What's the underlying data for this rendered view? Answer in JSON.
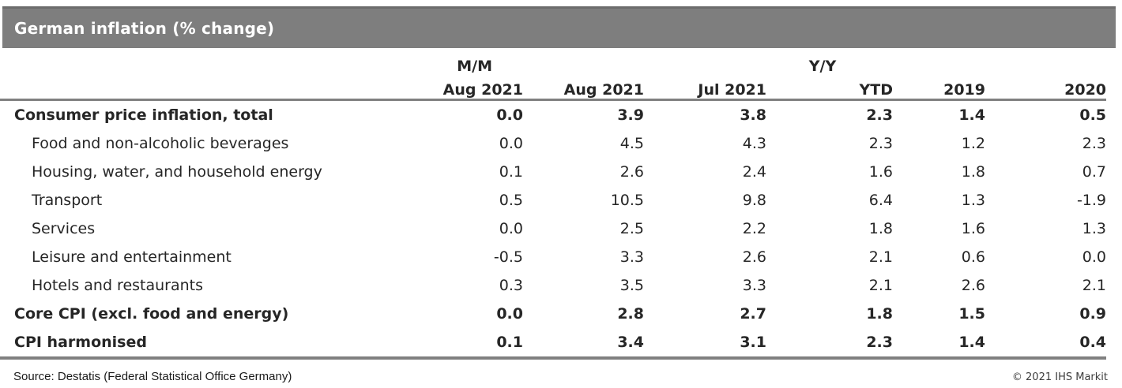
{
  "title": "German inflation (% change)",
  "header": {
    "mm_label": "M/M",
    "yy_label": "Y/Y"
  },
  "chart_data": {
    "type": "table",
    "title": "German inflation (% change)",
    "group_headers": [
      {
        "label": "M/M",
        "columns": [
          "Aug 2021"
        ]
      },
      {
        "label": "Y/Y",
        "columns": [
          "Aug 2021",
          "Jul 2021",
          "YTD",
          "2019",
          "2020"
        ]
      }
    ],
    "columns": [
      "Aug 2021",
      "Aug 2021",
      "Jul 2021",
      "YTD",
      "2019",
      "2020"
    ],
    "rows": [
      {
        "label": "Consumer price inflation, total",
        "bold": true,
        "indent": false,
        "values": [
          "0.0",
          "3.9",
          "3.8",
          "2.3",
          "1.4",
          "0.5"
        ]
      },
      {
        "label": "Food and non-alcoholic beverages",
        "bold": false,
        "indent": true,
        "values": [
          "0.0",
          "4.5",
          "4.3",
          "2.3",
          "1.2",
          "2.3"
        ]
      },
      {
        "label": "Housing, water, and household energy",
        "bold": false,
        "indent": true,
        "values": [
          "0.1",
          "2.6",
          "2.4",
          "1.6",
          "1.8",
          "0.7"
        ]
      },
      {
        "label": "Transport",
        "bold": false,
        "indent": true,
        "values": [
          "0.5",
          "10.5",
          "9.8",
          "6.4",
          "1.3",
          "-1.9"
        ]
      },
      {
        "label": "Services",
        "bold": false,
        "indent": true,
        "values": [
          "0.0",
          "2.5",
          "2.2",
          "1.8",
          "1.6",
          "1.3"
        ]
      },
      {
        "label": "Leisure and entertainment",
        "bold": false,
        "indent": true,
        "values": [
          "-0.5",
          "3.3",
          "2.6",
          "2.1",
          "0.6",
          "0.0"
        ]
      },
      {
        "label": "Hotels and restaurants",
        "bold": false,
        "indent": true,
        "values": [
          "0.3",
          "3.5",
          "3.3",
          "2.1",
          "2.6",
          "2.1"
        ]
      },
      {
        "label": "Core CPI (excl. food and energy)",
        "bold": true,
        "indent": false,
        "values": [
          "0.0",
          "2.8",
          "2.7",
          "1.8",
          "1.5",
          "0.9"
        ]
      },
      {
        "label": "CPI harmonised",
        "bold": true,
        "indent": false,
        "values": [
          "0.1",
          "3.4",
          "3.1",
          "2.3",
          "1.4",
          "0.4"
        ]
      }
    ]
  },
  "footer": {
    "source": "Source: Destatis (Federal Statistical Office Germany)",
    "copyright": "© 2021 IHS Markit"
  },
  "colors": {
    "title_bar": "#7e7e7e",
    "title_bar_top_edge": "#6c6c6c",
    "border_gray": "#808080",
    "body_text": "#262626",
    "title_text": "#ffffff"
  }
}
